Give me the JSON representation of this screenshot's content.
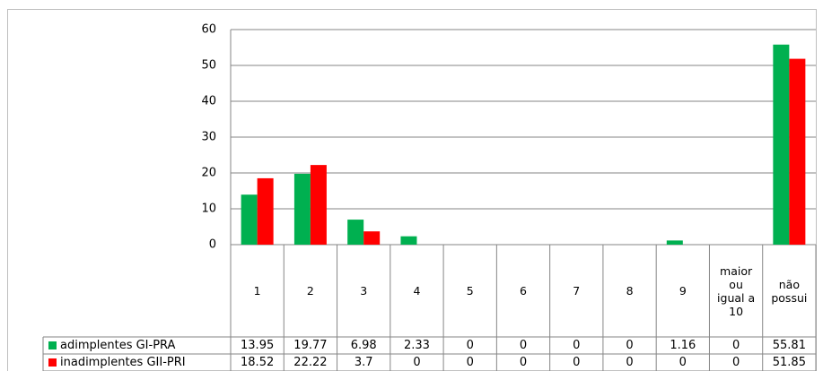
{
  "chart_data": {
    "type": "bar",
    "categories": [
      "1",
      "2",
      "3",
      "4",
      "5",
      "6",
      "7",
      "8",
      "9",
      "maior ou igual a 10",
      "não possui"
    ],
    "series": [
      {
        "name": "adimplentes GI-PRA",
        "color": "#00b050",
        "values": [
          13.95,
          19.77,
          6.98,
          2.33,
          0,
          0,
          0,
          0,
          1.16,
          0,
          55.81
        ]
      },
      {
        "name": "inadimplentes GII-PRI",
        "color": "#ff0000",
        "values": [
          18.52,
          22.22,
          3.7,
          0,
          0,
          0,
          0,
          0,
          0,
          0,
          51.85
        ]
      }
    ],
    "ylim": [
      0,
      60
    ],
    "yticks": [
      0,
      10,
      20,
      30,
      40,
      50,
      60
    ],
    "grid": true,
    "data_table": true
  }
}
